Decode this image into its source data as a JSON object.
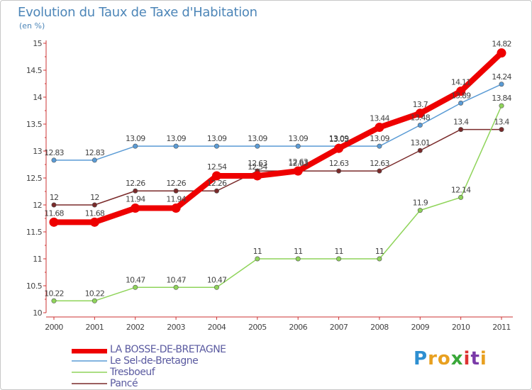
{
  "chart_data": {
    "type": "line",
    "title": "Evolution du Taux de Taxe d'Habitation",
    "ylabel": "(en %)",
    "xlabel": "",
    "ylim": [
      10,
      15
    ],
    "yticks": [
      "10",
      "10.5",
      "11",
      "11.5",
      "12",
      "12.5",
      "13",
      "13.5",
      "14",
      "14.5",
      "15"
    ],
    "categories": [
      "2000",
      "2001",
      "2002",
      "2003",
      "2004",
      "2005",
      "2006",
      "2007",
      "2008",
      "2009",
      "2010",
      "2011"
    ],
    "series": [
      {
        "name": "LA BOSSE-DE-BRETAGNE",
        "color": "#ee0000",
        "values": [
          11.68,
          11.68,
          11.94,
          11.94,
          12.54,
          12.54,
          12.63,
          13.05,
          13.44,
          13.7,
          14.11,
          14.82
        ],
        "labels": [
          "11.68",
          "11.68",
          "11.94",
          "11.94",
          "12.54",
          "12.54",
          "12.63",
          "13.05",
          "13.44",
          "13.7",
          "14.11",
          "14.82"
        ]
      },
      {
        "name": "Le Sel-de-Bretagne",
        "color": "#5a9bd5",
        "values": [
          12.83,
          12.83,
          13.09,
          13.09,
          13.09,
          13.09,
          13.09,
          13.09,
          13.09,
          13.48,
          13.89,
          14.24
        ],
        "labels": [
          "12.83",
          "12.83",
          "13.09",
          "13.09",
          "13.09",
          "13.09",
          "13.09",
          "13.09",
          "13.09",
          "13.48",
          "13.89",
          "14.24"
        ]
      },
      {
        "name": "Tresboeuf",
        "color": "#8fd45a",
        "values": [
          10.22,
          10.22,
          10.47,
          10.47,
          10.47,
          11,
          11,
          11,
          11,
          11.9,
          12.14,
          13.84
        ],
        "labels": [
          "10.22",
          "10.22",
          "10.47",
          "10.47",
          "10.47",
          "11",
          "11",
          "11",
          "11",
          "11.9",
          "12.14",
          "13.84"
        ]
      },
      {
        "name": "Pancé",
        "color": "#7a2a2a",
        "values": [
          12,
          12,
          12.26,
          12.26,
          12.26,
          12.63,
          12.63,
          12.63,
          12.63,
          13.01,
          13.4,
          13.4
        ],
        "labels": [
          "12",
          "12",
          "12.26",
          "12.26",
          "12.26",
          "12.63",
          "12.63",
          "12.63",
          "12.63",
          "13.01",
          "13.4",
          "13.4"
        ]
      }
    ],
    "legend_position": "bottom-left",
    "grid": false
  },
  "brand": {
    "letters": [
      "P",
      "r",
      "o",
      "x",
      "i",
      "t",
      "i"
    ],
    "colors": [
      "#2e8fd1",
      "#e8a020",
      "#e8a020",
      "#3aa83a",
      "#d33",
      "#7a3aa8",
      "#e8a020"
    ]
  }
}
